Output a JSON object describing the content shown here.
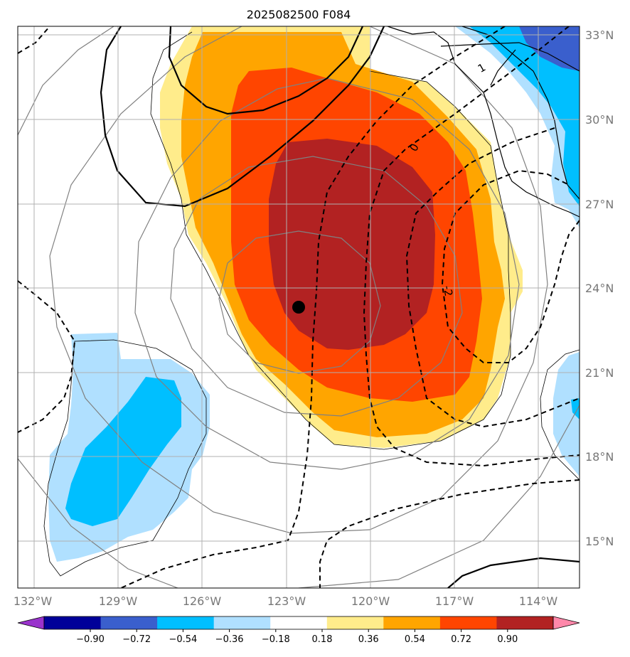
{
  "title": "2025082500 F084",
  "map": {
    "lon_ticks": [
      "132°W",
      "129°W",
      "126°W",
      "123°W",
      "120°W",
      "117°W",
      "114°W"
    ],
    "lat_ticks": [
      "33°N",
      "30°N",
      "27°N",
      "24°N",
      "21°N",
      "18°N",
      "15°N"
    ],
    "contour_labels": [
      "1",
      "0",
      "-2"
    ],
    "storm_marker": {
      "lon": -122.6,
      "lat": 23.3
    }
  },
  "colorbar": {
    "ticks": [
      "−0.90",
      "−0.72",
      "−0.54",
      "−0.36",
      "−0.18",
      "0.18",
      "0.36",
      "0.54",
      "0.72",
      "0.90"
    ],
    "colors": [
      "#9933cc",
      "#000099",
      "#3a5fcd",
      "#00bfff",
      "#b0e0ff",
      "#ffffff",
      "#ffec8b",
      "#ffa500",
      "#ff4500",
      "#b22222",
      "#ff88aa"
    ]
  }
}
